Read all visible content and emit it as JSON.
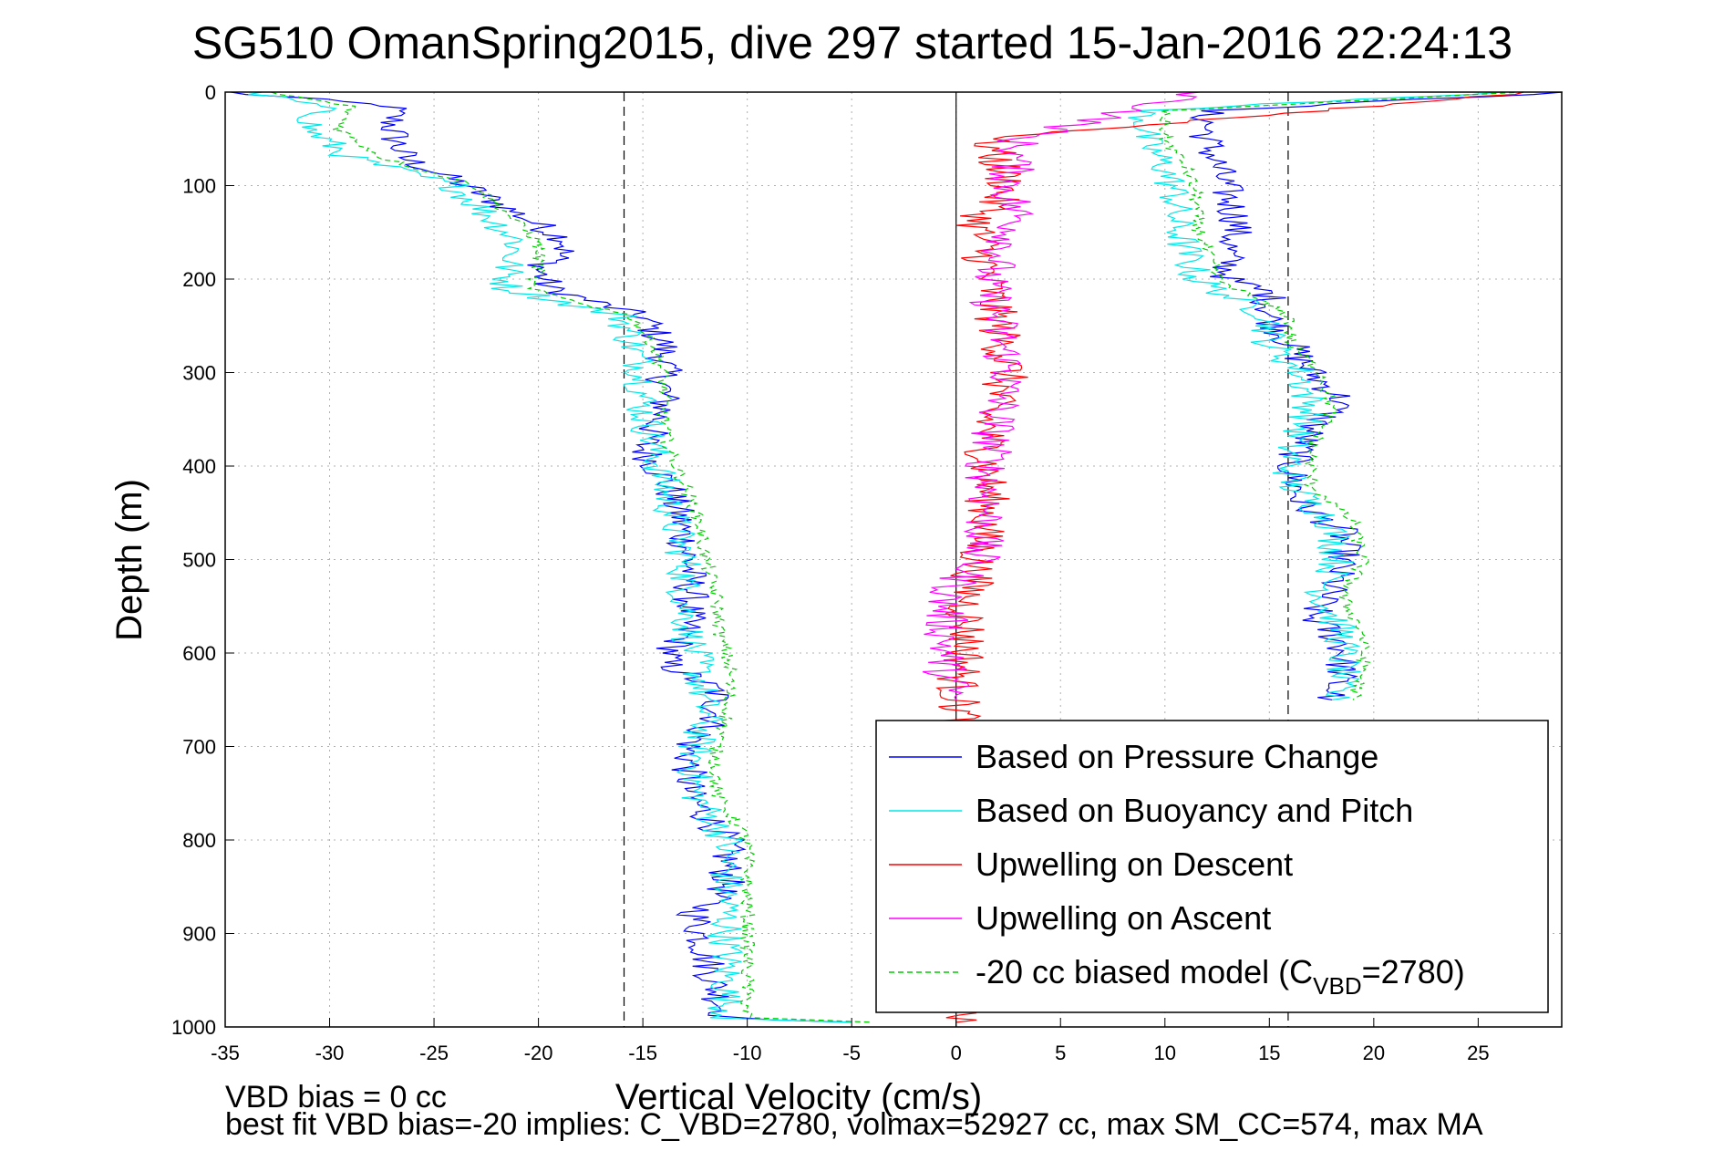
{
  "chart_data": {
    "type": "line",
    "title": "SG510 OmanSpring2015, dive 297 started 15-Jan-2016 22:24:13",
    "xlabel": "Vertical Velocity (cm/s)",
    "ylabel": "Depth (m)",
    "xlim": [
      -35,
      29
    ],
    "ylim": [
      0,
      1000
    ],
    "y_reversed": true,
    "grid": true,
    "legend_position": "lower-right",
    "xticks": [
      -35,
      -30,
      -25,
      -20,
      -15,
      -10,
      -5,
      0,
      5,
      10,
      15,
      20,
      25
    ],
    "yticks": [
      0,
      100,
      200,
      300,
      400,
      500,
      600,
      700,
      800,
      900,
      1000
    ],
    "reference_lines": [
      {
        "x": -15.9,
        "style": "dashed",
        "color": "#000000"
      },
      {
        "x": 15.9,
        "style": "dashed",
        "color": "#000000"
      },
      {
        "x": 0,
        "style": "solid",
        "color": "#000000"
      }
    ],
    "series": [
      {
        "name": "Based on Pressure Change",
        "color": "#0000ff",
        "style": "solid",
        "depth": [
          0,
          15,
          40,
          70,
          100,
          130,
          160,
          175,
          190,
          210,
          240,
          270,
          300,
          340,
          380,
          420,
          460,
          500,
          540,
          580,
          610,
          640,
          670,
          700,
          750,
          800,
          850,
          880,
          920,
          960,
          990,
          995
        ],
        "descent": [
          -35,
          -27,
          -27,
          -26.5,
          -23.5,
          -21,
          -18.5,
          -19,
          -20,
          -19.5,
          -15,
          -14,
          -14,
          -14,
          -15,
          -13.8,
          -13.2,
          -12.8,
          -12.7,
          -13,
          -14,
          -11.5,
          -11.5,
          -12.8,
          -12.8,
          -11,
          -11,
          -12.5,
          -12,
          -11.5,
          -11,
          -5
        ],
        "ascent_depth": [
          0,
          20,
          50,
          80,
          110,
          140,
          170,
          200,
          215,
          240,
          270,
          300,
          330,
          360,
          400,
          440,
          470,
          500,
          530,
          560,
          590,
          620,
          640,
          650
        ],
        "ascent": [
          29,
          12,
          12,
          12.5,
          13,
          13.5,
          13,
          13,
          15,
          15,
          16,
          17,
          18.5,
          17,
          16,
          16.5,
          18.5,
          18.5,
          18,
          17,
          18.5,
          18.5,
          18,
          18
        ]
      },
      {
        "name": "Based on Buoyancy and Pitch",
        "color": "#00e8e8",
        "style": "solid",
        "depth": [
          0,
          15,
          40,
          70,
          100,
          130,
          160,
          190,
          210,
          240,
          270,
          300,
          340,
          380,
          420,
          460,
          500,
          540,
          580,
          620,
          670,
          700,
          750,
          800,
          850,
          900,
          950,
          990,
          995
        ],
        "descent": [
          -34,
          -30.5,
          -31,
          -29,
          -24,
          -22.5,
          -21,
          -21.5,
          -21.5,
          -16,
          -15.5,
          -15,
          -15,
          -14.5,
          -14,
          -13.5,
          -13,
          -13,
          -12.8,
          -12.3,
          -12,
          -12.5,
          -12.5,
          -11,
          -11,
          -11,
          -11,
          -11,
          -5
        ],
        "ascent_depth": [
          0,
          20,
          50,
          80,
          110,
          140,
          170,
          200,
          240,
          270,
          300,
          340,
          380,
          420,
          460,
          500,
          540,
          580,
          620,
          650
        ],
        "ascent": [
          26,
          9,
          9,
          10,
          10.5,
          10.5,
          11,
          11.5,
          15,
          15,
          16.5,
          17,
          16,
          16,
          18,
          18.3,
          17.5,
          18.5,
          18.5,
          18
        ]
      },
      {
        "name": "Upwelling on Descent",
        "color": "#ff0000",
        "style": "solid",
        "depth": [
          0,
          50,
          100,
          140,
          200,
          250,
          300,
          340,
          400,
          450,
          500,
          550,
          600,
          640,
          670,
          990,
          995
        ],
        "values": [
          28,
          1.5,
          2.5,
          1,
          1.5,
          2,
          2.5,
          1.5,
          1.5,
          1.5,
          1,
          0.5,
          0.5,
          0,
          0.3,
          0,
          0
        ]
      },
      {
        "name": "Upwelling on Ascent",
        "color": "#ff00ff",
        "style": "solid",
        "depth": [
          0,
          50,
          100,
          140,
          200,
          250,
          300,
          340,
          400,
          450,
          500,
          540,
          580,
          620,
          650
        ],
        "values": [
          12,
          3,
          2.5,
          3,
          1.5,
          2,
          2.5,
          2,
          1.5,
          1.5,
          1,
          -0.5,
          -0.5,
          -0.5,
          0
        ]
      },
      {
        "name": "-20 cc biased model (C_VBD=2780)",
        "color": "#00cc00",
        "style": "dashed",
        "depth": [
          0,
          15,
          40,
          70,
          100,
          130,
          160,
          190,
          210,
          240,
          270,
          300,
          340,
          380,
          420,
          460,
          500,
          540,
          580,
          620,
          670,
          700,
          750,
          800,
          850,
          900,
          950,
          990,
          995
        ],
        "descent": [
          -33,
          -29,
          -29.5,
          -27.5,
          -23,
          -21.5,
          -20,
          -20,
          -20.5,
          -15.5,
          -14.5,
          -14,
          -14,
          -13.8,
          -13,
          -12.3,
          -12,
          -11.5,
          -11.3,
          -10.8,
          -11,
          -11.5,
          -11.5,
          -10,
          -10,
          -10,
          -10,
          -10,
          -4
        ],
        "ascent_depth": [
          0,
          20,
          50,
          80,
          110,
          140,
          170,
          200,
          240,
          270,
          300,
          340,
          380,
          420,
          460,
          500,
          540,
          580,
          620,
          650
        ],
        "ascent": [
          27,
          10,
          10,
          11,
          11.5,
          11.5,
          12,
          12.5,
          16,
          16,
          17.5,
          18,
          17,
          17,
          19,
          19.5,
          18.5,
          19.5,
          19.5,
          19
        ]
      }
    ],
    "legend_label_main": "-20 cc biased model (C",
    "legend_label_sub": "VBD",
    "legend_label_tail": "=2780)",
    "footer_lines": [
      "VBD bias = 0 cc",
      "best fit VBD bias=-20 implies: C_VBD=2780, volmax=52927 cc, max SM_CC=574, max MA"
    ]
  }
}
